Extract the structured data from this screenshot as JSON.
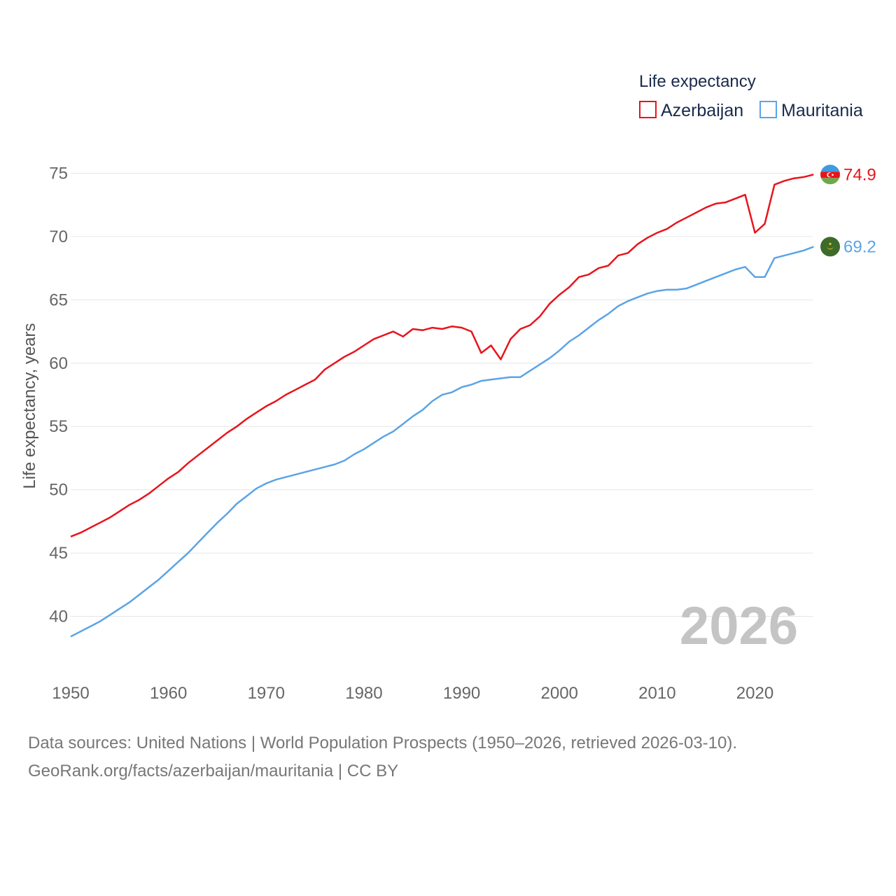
{
  "chart_data": {
    "type": "line",
    "legend_title": "Life expectancy",
    "ylabel": "Life expectancy, years",
    "xlabel": "",
    "x_ticks": [
      1950,
      1960,
      1970,
      1980,
      1990,
      2000,
      2010,
      2020
    ],
    "y_ticks": [
      40,
      45,
      50,
      55,
      60,
      65,
      70,
      75
    ],
    "xlim": [
      1950,
      2026
    ],
    "ylim": [
      38,
      76
    ],
    "year_label": "2026",
    "legend_placement": "top-right",
    "series": [
      {
        "name": "Azerbaijan",
        "color": "#e8141c",
        "end_label": "74.9",
        "flag_icon": "azerbaijan-flag-icon",
        "x": [
          1950,
          1951,
          1952,
          1953,
          1954,
          1955,
          1956,
          1957,
          1958,
          1959,
          1960,
          1961,
          1962,
          1963,
          1964,
          1965,
          1966,
          1967,
          1968,
          1969,
          1970,
          1971,
          1972,
          1973,
          1974,
          1975,
          1976,
          1977,
          1978,
          1979,
          1980,
          1981,
          1982,
          1983,
          1984,
          1985,
          1986,
          1987,
          1988,
          1989,
          1990,
          1991,
          1992,
          1993,
          1994,
          1995,
          1996,
          1997,
          1998,
          1999,
          2000,
          2001,
          2002,
          2003,
          2004,
          2005,
          2006,
          2007,
          2008,
          2009,
          2010,
          2011,
          2012,
          2013,
          2014,
          2015,
          2016,
          2017,
          2018,
          2019,
          2020,
          2021,
          2022,
          2023,
          2024,
          2025,
          2026
        ],
        "y": [
          46.3,
          46.6,
          47.0,
          47.4,
          47.8,
          48.3,
          48.8,
          49.2,
          49.7,
          50.3,
          50.9,
          51.4,
          52.1,
          52.7,
          53.3,
          53.9,
          54.5,
          55.0,
          55.6,
          56.1,
          56.6,
          57.0,
          57.5,
          57.9,
          58.3,
          58.7,
          59.5,
          60.0,
          60.5,
          60.9,
          61.4,
          61.9,
          62.2,
          62.5,
          62.1,
          62.7,
          62.6,
          62.8,
          62.7,
          62.9,
          62.8,
          62.5,
          60.8,
          61.4,
          60.3,
          61.9,
          62.7,
          63.0,
          63.7,
          64.7,
          65.4,
          66.0,
          66.8,
          67.0,
          67.5,
          67.7,
          68.5,
          68.7,
          69.4,
          69.9,
          70.3,
          70.6,
          71.1,
          71.5,
          71.9,
          72.3,
          72.6,
          72.7,
          73.0,
          73.3,
          70.3,
          71.0,
          74.1,
          74.4,
          74.6,
          74.7,
          74.9
        ]
      },
      {
        "name": "Mauritania",
        "color": "#5ba4e6",
        "end_label": "69.2",
        "flag_icon": "mauritania-flag-icon",
        "x": [
          1950,
          1951,
          1952,
          1953,
          1954,
          1955,
          1956,
          1957,
          1958,
          1959,
          1960,
          1961,
          1962,
          1963,
          1964,
          1965,
          1966,
          1967,
          1968,
          1969,
          1970,
          1971,
          1972,
          1973,
          1974,
          1975,
          1976,
          1977,
          1978,
          1979,
          1980,
          1981,
          1982,
          1983,
          1984,
          1985,
          1986,
          1987,
          1988,
          1989,
          1990,
          1991,
          1992,
          1993,
          1994,
          1995,
          1996,
          1997,
          1998,
          1999,
          2000,
          2001,
          2002,
          2003,
          2004,
          2005,
          2006,
          2007,
          2008,
          2009,
          2010,
          2011,
          2012,
          2013,
          2014,
          2015,
          2016,
          2017,
          2018,
          2019,
          2020,
          2021,
          2022,
          2023,
          2024,
          2025,
          2026
        ],
        "y": [
          38.4,
          38.8,
          39.2,
          39.6,
          40.1,
          40.6,
          41.1,
          41.7,
          42.3,
          42.9,
          43.6,
          44.3,
          45.0,
          45.8,
          46.6,
          47.4,
          48.1,
          48.9,
          49.5,
          50.1,
          50.5,
          50.8,
          51.0,
          51.2,
          51.4,
          51.6,
          51.8,
          52.0,
          52.3,
          52.8,
          53.2,
          53.7,
          54.2,
          54.6,
          55.2,
          55.8,
          56.3,
          57.0,
          57.5,
          57.7,
          58.1,
          58.3,
          58.6,
          58.7,
          58.8,
          58.9,
          58.9,
          59.4,
          59.9,
          60.4,
          61.0,
          61.7,
          62.2,
          62.8,
          63.4,
          63.9,
          64.5,
          64.9,
          65.2,
          65.5,
          65.7,
          65.8,
          65.8,
          65.9,
          66.2,
          66.5,
          66.8,
          67.1,
          67.4,
          67.6,
          66.8,
          66.8,
          68.3,
          68.5,
          68.7,
          68.9,
          69.2
        ]
      }
    ]
  },
  "footer": {
    "source_line": "Data sources: United Nations | World Population Prospects (1950–2026, retrieved 2026-03-10).",
    "credit_line": "GeoRank.org/facts/azerbaijan/mauritania | CC BY"
  }
}
